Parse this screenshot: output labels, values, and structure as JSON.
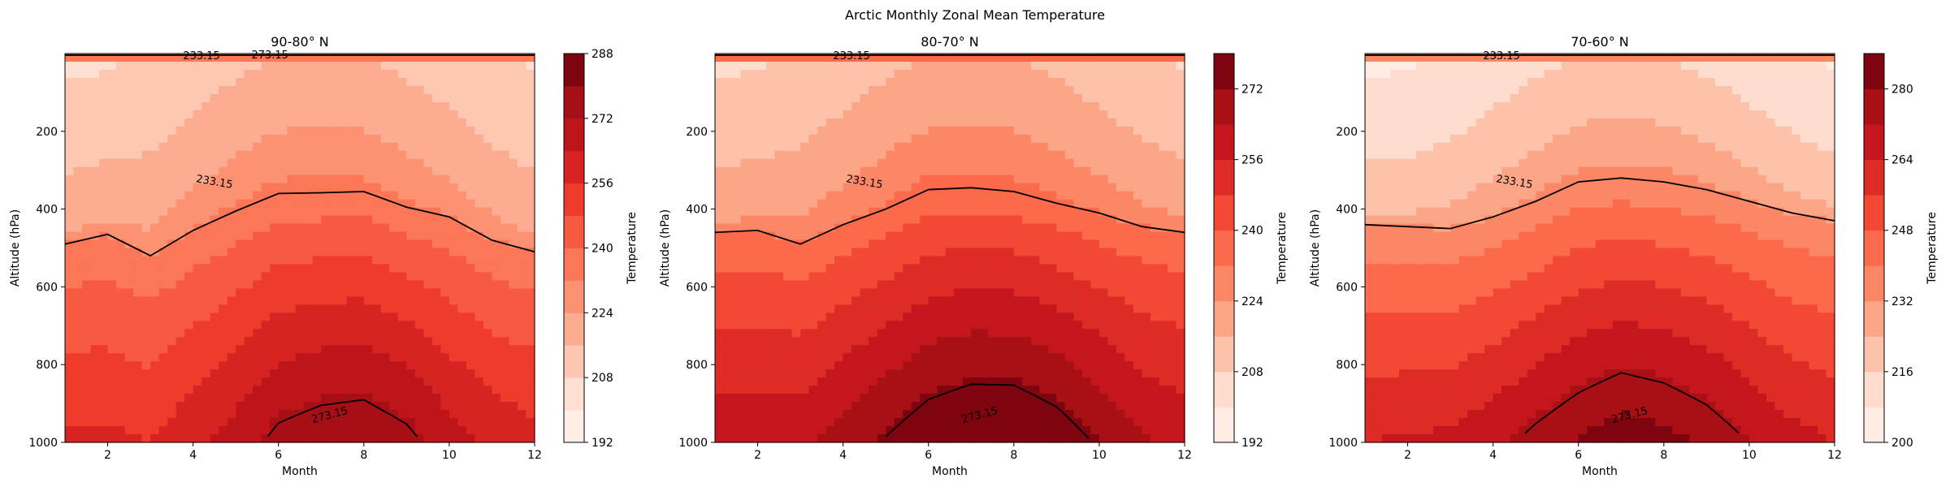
{
  "figure_title": "Arctic Monthly Zonal Mean Temperature",
  "chart_data": [
    {
      "type": "contour",
      "title": "90-80° N",
      "xlabel": "Month",
      "ylabel": "Altitude (hPa)",
      "colorbar_label": "Temperature",
      "xlim": [
        1,
        12
      ],
      "ylim": [
        1000,
        0
      ],
      "xticks": [
        2,
        4,
        6,
        8,
        10,
        12
      ],
      "yticks": [
        200,
        400,
        600,
        800,
        1000
      ],
      "color_range": [
        192,
        288
      ],
      "colorbar_ticks": [
        192,
        208,
        224,
        240,
        256,
        272,
        288
      ],
      "contour_level": 233.15,
      "contour_labels": [
        "233.15",
        "233.15",
        "273.15",
        "273.15"
      ],
      "surface_temperature_by_month": [
        258,
        258,
        256,
        262,
        268,
        276,
        279,
        280,
        276,
        268,
        262,
        259
      ],
      "isotherm_233_altitude_hPa": [
        490,
        465,
        520,
        455,
        405,
        360,
        358,
        355,
        395,
        420,
        480,
        510
      ]
    },
    {
      "type": "contour",
      "title": "80-70° N",
      "xlabel": "Month",
      "ylabel": "Altitude (hPa)",
      "colorbar_label": "Temperature",
      "xlim": [
        1,
        12
      ],
      "ylim": [
        1000,
        0
      ],
      "xticks": [
        2,
        4,
        6,
        8,
        10,
        12
      ],
      "yticks": [
        200,
        400,
        600,
        800,
        1000
      ],
      "color_range": [
        192,
        280
      ],
      "colorbar_ticks": [
        192,
        208,
        224,
        240,
        256,
        272
      ],
      "contour_level": 233.15,
      "contour_labels": [
        "233.15",
        "233.15",
        "273.15"
      ],
      "surface_temperature_by_month": [
        262,
        262,
        262,
        268,
        274,
        280,
        283,
        283,
        279,
        272,
        265,
        262
      ],
      "isotherm_233_altitude_hPa": [
        460,
        455,
        490,
        440,
        400,
        350,
        345,
        355,
        385,
        410,
        445,
        460
      ]
    },
    {
      "type": "contour",
      "title": "70-60° N",
      "xlabel": "Month",
      "ylabel": "Altitude (hPa)",
      "colorbar_label": "Temperature",
      "xlim": [
        1,
        12
      ],
      "ylim": [
        1000,
        0
      ],
      "xticks": [
        2,
        4,
        6,
        8,
        10,
        12
      ],
      "yticks": [
        200,
        400,
        600,
        800,
        1000
      ],
      "color_range": [
        200,
        288
      ],
      "colorbar_ticks": [
        200,
        216,
        232,
        248,
        264,
        280
      ],
      "contour_level": 233.15,
      "contour_labels": [
        "233.15",
        "233.15",
        "273.15"
      ],
      "surface_temperature_by_month": [
        264,
        265,
        266,
        270,
        276,
        281,
        285,
        283,
        279,
        273,
        267,
        264
      ],
      "isotherm_233_altitude_hPa": [
        440,
        445,
        450,
        420,
        380,
        330,
        320,
        330,
        350,
        380,
        410,
        430
      ]
    }
  ]
}
